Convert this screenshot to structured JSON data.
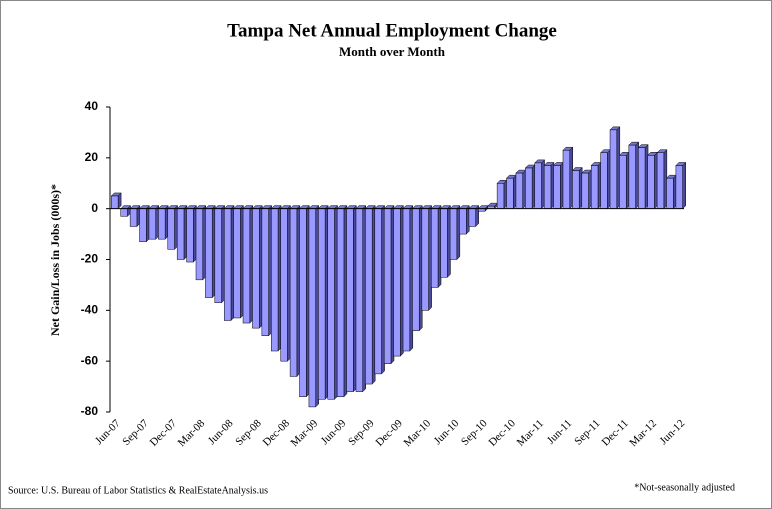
{
  "chart_data": {
    "type": "bar",
    "title": "Tampa Net Annual Employment Change",
    "subtitle": "Month over Month",
    "y_label": "Net Gain/Loss in Jobs (000s)*",
    "source": "Source: U.S. Bureau of Labor Statistics & RealEstateAnalysis.us",
    "note": "*Not-seasonally adjusted",
    "color": "#9999ff",
    "categories": [
      "Jun-07",
      null,
      null,
      "Sep-07",
      null,
      null,
      "Dec-07",
      null,
      null,
      "Mar-08",
      null,
      null,
      "Jun-08",
      null,
      null,
      "Sep-08",
      null,
      null,
      "Dec-08",
      null,
      null,
      "Mar-09",
      null,
      null,
      "Jun-09",
      null,
      null,
      "Sep-09",
      null,
      null,
      "Dec-09",
      null,
      null,
      "Mar-10",
      null,
      null,
      "Jun-10",
      null,
      null,
      "Sep-10",
      null,
      null,
      "Dec-10",
      null,
      null,
      "Mar-11",
      null,
      null,
      "Jun-11",
      null,
      null,
      "Sep-11",
      null,
      null,
      "Dec-11",
      null,
      null,
      "Mar-12",
      null,
      null,
      "Jun-12"
    ],
    "values": [
      5,
      -3,
      -7,
      -13,
      -12,
      -12,
      -16,
      -20,
      -21,
      -28,
      -35,
      -37,
      -44,
      -43,
      -45,
      -47,
      -50,
      -56,
      -60,
      -66,
      -74,
      -78,
      -75,
      -75,
      -74,
      -72,
      -72,
      -69,
      -65,
      -61,
      -58,
      -56,
      -48,
      -40,
      -31,
      -27,
      -20,
      -10,
      -7,
      -1,
      1,
      10,
      12,
      14,
      16,
      18,
      17,
      17,
      23,
      15,
      14,
      17,
      22,
      31,
      21,
      25,
      24,
      21,
      22,
      12,
      17
    ],
    "ylim": [
      -80,
      40
    ],
    "yticks": [
      -80,
      -60,
      -40,
      -20,
      0,
      20,
      40
    ]
  }
}
